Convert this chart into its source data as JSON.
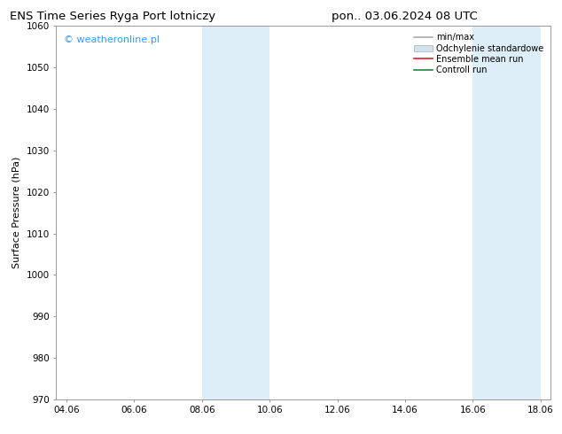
{
  "title_left": "ENS Time Series Ryga Port lotniczy",
  "title_right": "pon.. 03.06.2024 08 UTC",
  "ylabel": "Surface Pressure (hPa)",
  "watermark": "© weatheronline.pl",
  "watermark_color": "#3399ff",
  "ylim": [
    970,
    1060
  ],
  "yticks": [
    970,
    980,
    990,
    1000,
    1010,
    1020,
    1030,
    1040,
    1050,
    1060
  ],
  "xtick_labels": [
    "04.06",
    "06.06",
    "08.06",
    "10.06",
    "12.06",
    "14.06",
    "16.06",
    "18.06"
  ],
  "xtick_positions": [
    0,
    2,
    4,
    6,
    8,
    10,
    12,
    14
  ],
  "xmin": -0.3,
  "xmax": 14.3,
  "shaded_regions": [
    {
      "x_start": 4.0,
      "x_end": 6.0,
      "color": "#ddeef8"
    },
    {
      "x_start": 12.0,
      "x_end": 14.0,
      "color": "#ddeef8"
    }
  ],
  "legend_entries": [
    {
      "label": "min/max",
      "color": "#aaaaaa",
      "lw": 1.2,
      "type": "line"
    },
    {
      "label": "Odchylenie standardowe",
      "color": "#d0e4f0",
      "lw": 5,
      "type": "patch"
    },
    {
      "label": "Ensemble mean run",
      "color": "#dd2222",
      "lw": 1.2,
      "type": "line"
    },
    {
      "label": "Controll run",
      "color": "#228833",
      "lw": 1.2,
      "type": "line"
    }
  ],
  "bg_color": "#ffffff",
  "title_fontsize": 9.5,
  "axis_fontsize": 8,
  "tick_fontsize": 7.5,
  "legend_fontsize": 7,
  "watermark_fontsize": 8
}
